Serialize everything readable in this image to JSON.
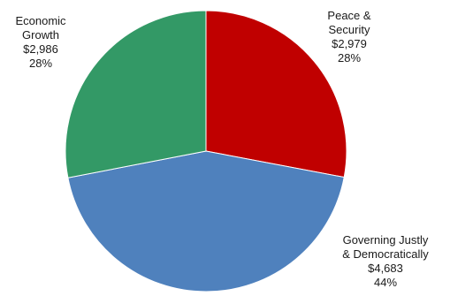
{
  "chart_data": {
    "type": "pie",
    "title": "",
    "slices": [
      {
        "category_line1": "Peace &",
        "category_line2": "Security",
        "amount": "$2,979",
        "percent": "28%",
        "value": 2979,
        "color": "#c00000"
      },
      {
        "category_line1": "Governing Justly",
        "category_line2": "& Democratically",
        "amount": "$4,683",
        "percent": "44%",
        "value": 4683,
        "color": "#4f81bd"
      },
      {
        "category_line1": "Economic",
        "category_line2": "Growth",
        "amount": "$2,986",
        "percent": "28%",
        "value": 2986,
        "color": "#339966"
      }
    ]
  }
}
